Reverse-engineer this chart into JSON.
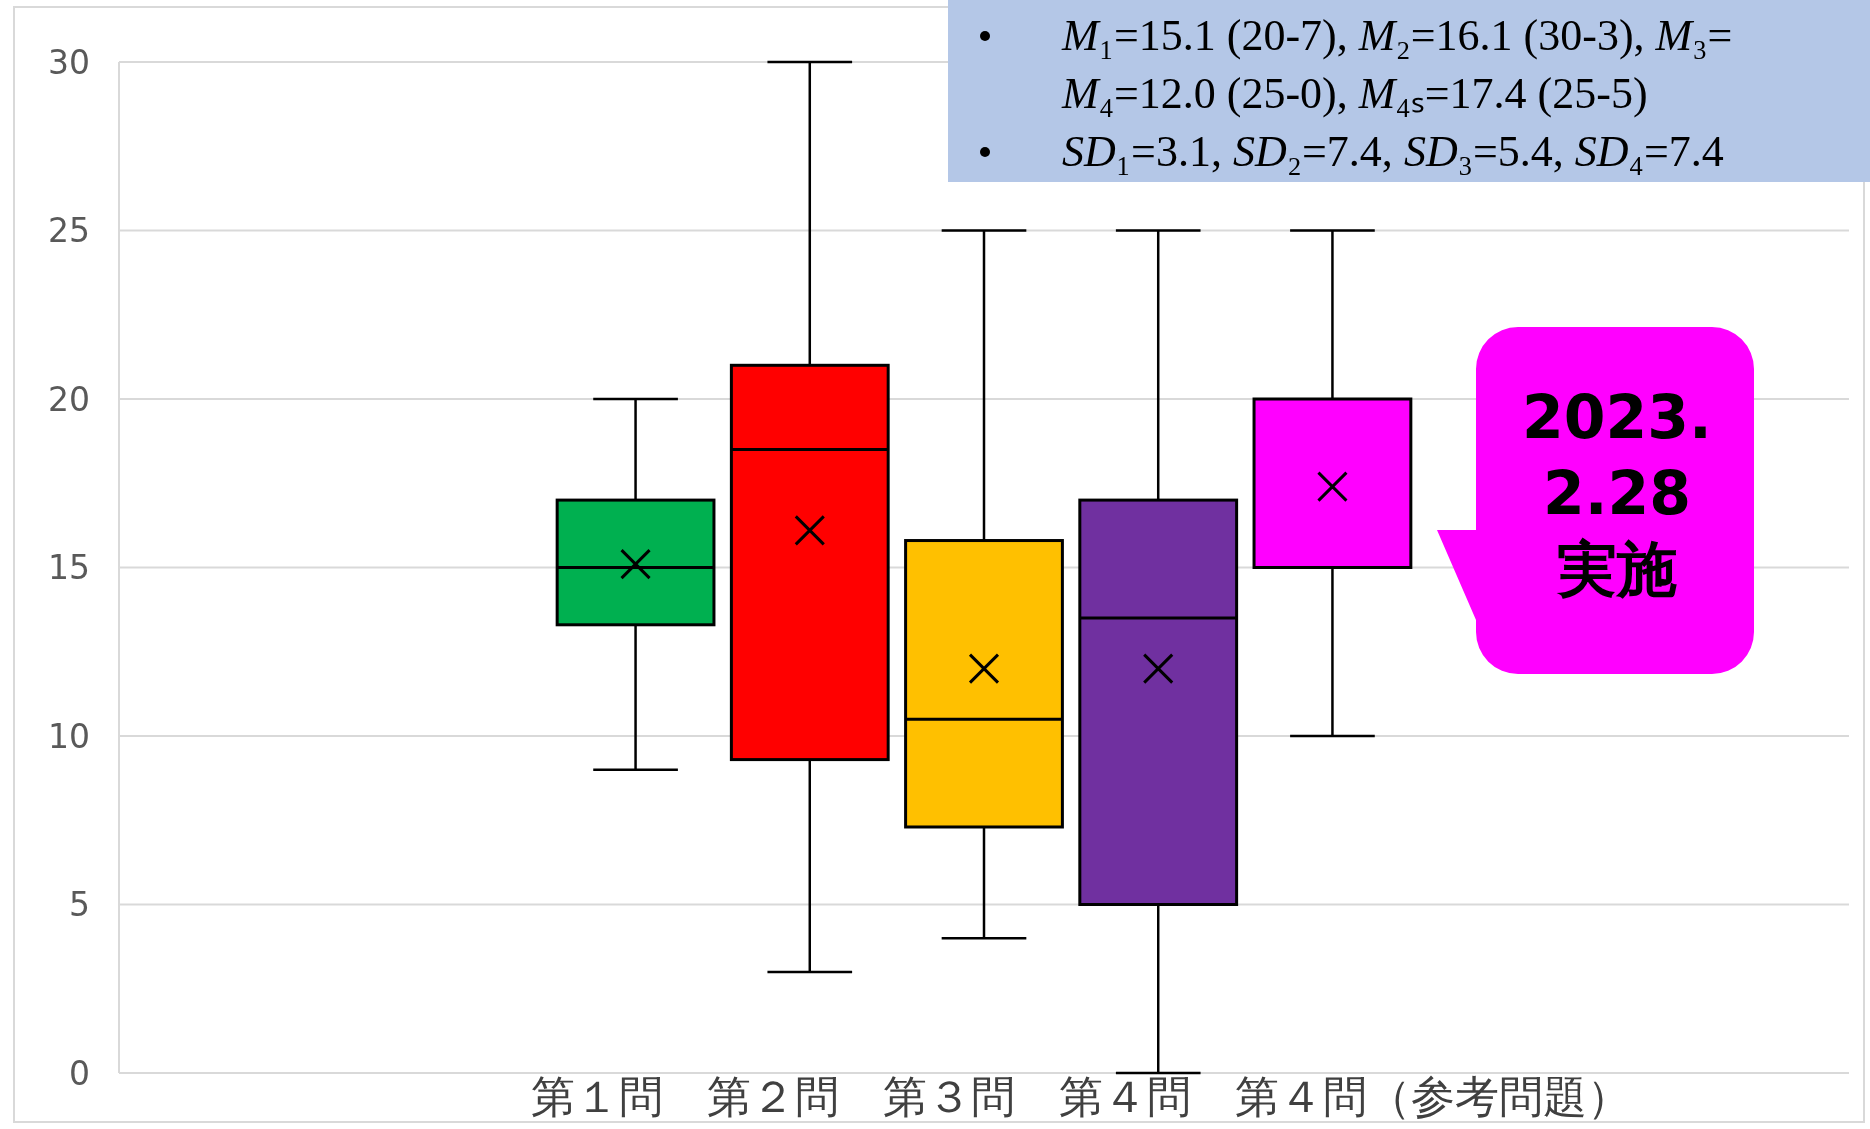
{
  "chart_data": {
    "type": "box",
    "categories": [
      "第１問　第２問　第３問　第４問　第４問（参考問題）"
    ],
    "series": [
      {
        "color": "#00b050",
        "boxes": [
          {
            "low": 9,
            "q1": 13.3,
            "median": 15,
            "q3": 17,
            "high": 20,
            "mean": 15.1
          }
        ]
      },
      {
        "color": "#ff0000",
        "boxes": [
          {
            "low": 3,
            "q1": 9.3,
            "median": 18.5,
            "q3": 21,
            "high": 30,
            "mean": 16.1
          }
        ]
      },
      {
        "color": "#ffc000",
        "boxes": [
          {
            "low": 4,
            "q1": 7.3,
            "median": 10.5,
            "q3": 15.8,
            "high": 25,
            "mean": 12.0
          }
        ]
      },
      {
        "color": "#7030a0",
        "boxes": [
          {
            "low": 0,
            "q1": 5,
            "median": 13.5,
            "q3": 17,
            "high": 25,
            "mean": 12.0
          }
        ]
      },
      {
        "color": "#ff00ff",
        "boxes": [
          {
            "low": 10,
            "q1": 15,
            "median": 15,
            "q3": 20,
            "high": 25,
            "mean": 17.4
          }
        ]
      }
    ],
    "ylim": [
      0,
      30
    ],
    "yticks": [
      0,
      5,
      10,
      15,
      20,
      25,
      30
    ],
    "grid": "y",
    "marker": "cross",
    "annotations": [
      "M₁=15.1 (20-7), M₂=16.1 (30-3), M₃=\nM₄=12.0 (25-0), M₄ₛ=17.4 (25-5)",
      "SD₁=3.1, SD₂=7.4, SD₃=5.4, SD₄=7.4",
      "2023.\n2.28\n実施"
    ]
  }
}
